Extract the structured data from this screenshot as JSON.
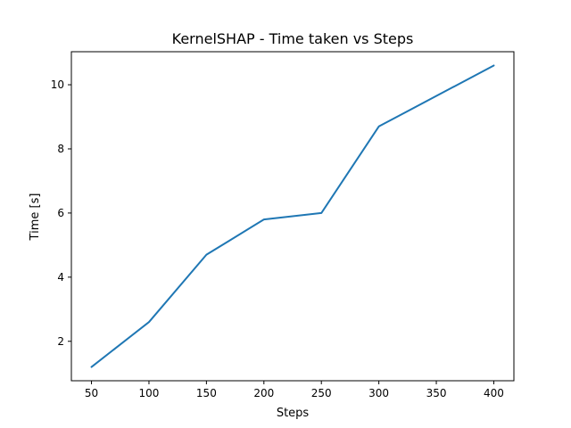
{
  "chart_data": {
    "type": "line",
    "title": "KernelSHAP - Time taken vs Steps",
    "xlabel": "Steps",
    "ylabel": "Time [s]",
    "x": [
      50,
      100,
      150,
      200,
      250,
      300,
      400
    ],
    "series": [
      {
        "values": [
          1.2,
          2.6,
          4.7,
          5.8,
          6.0,
          8.7,
          10.6
        ],
        "color": "#1f77b4"
      }
    ],
    "xlim": [
      32.5,
      417.5
    ],
    "ylim": [
      0.77,
      11.03
    ],
    "xticks": [
      50,
      100,
      150,
      200,
      250,
      300,
      350,
      400
    ],
    "yticks": [
      2,
      4,
      6,
      8,
      10
    ],
    "grid": false,
    "legend": "none"
  }
}
